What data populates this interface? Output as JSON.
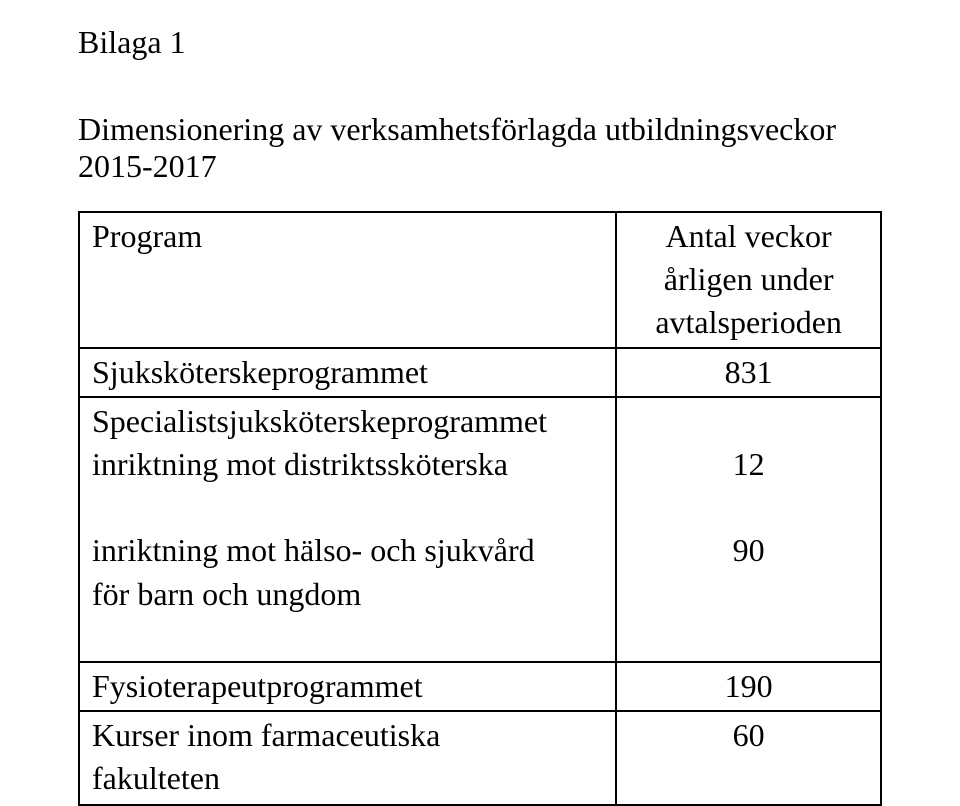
{
  "title": "Bilaga 1",
  "subtitle": "Dimensionering av verksamhetsförlagda utbildningsveckor 2015-2017",
  "table": {
    "header": {
      "program_label": "Program",
      "value_label_line1": "Antal veckor",
      "value_label_line2": "årligen under avtalsperioden"
    },
    "rows": [
      {
        "program_line1": "Sjuksköterskeprogrammet",
        "value": "831"
      },
      {
        "program_line1": "Specialistsjuksköterskeprogrammet",
        "program_line2": "inriktning mot distriktssköterska",
        "program_line3": "",
        "program_line4": "inriktning mot hälso- och sjukvård",
        "program_line5": "för barn och ungdom",
        "value_line1": "",
        "value_line2": "12",
        "value_line3": "",
        "value_line4": "90",
        "value_line5": ""
      },
      {
        "program_line1": "Fysioterapeutprogrammet",
        "value": "190"
      },
      {
        "program_line1": "Kurser inom farmaceutiska",
        "program_line2": "fakulteten",
        "value": "60"
      }
    ],
    "colors": {
      "border": "#000000",
      "text": "#000000",
      "background": "#ffffff"
    },
    "font": {
      "family": "Times New Roman",
      "size_pt": 24
    }
  }
}
